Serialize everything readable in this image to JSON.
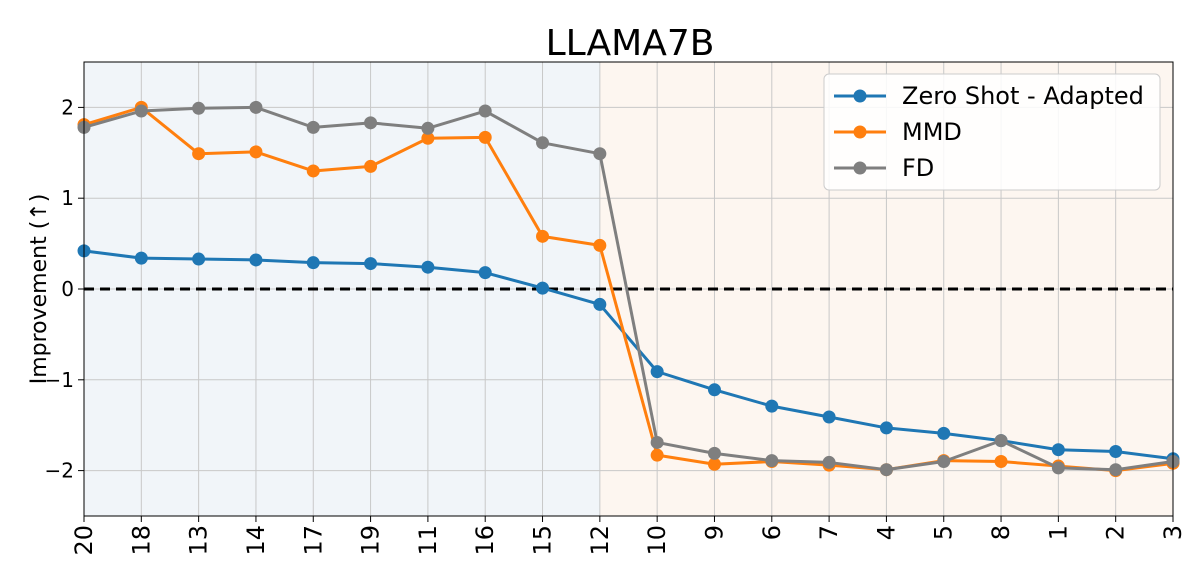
{
  "chart_data": {
    "type": "line",
    "title": "LLAMA7B",
    "xlabel": "",
    "ylabel": "Improvement (↑)",
    "categories": [
      "20",
      "18",
      "13",
      "14",
      "17",
      "19",
      "11",
      "16",
      "15",
      "12",
      "10",
      "9",
      "6",
      "7",
      "4",
      "5",
      "8",
      "1",
      "2",
      "3"
    ],
    "ylim": [
      -2.5,
      2.5
    ],
    "yticks": [
      -2,
      -1,
      0,
      1,
      2
    ],
    "ytick_labels": [
      "−2",
      "−1",
      "0",
      "1",
      "2"
    ],
    "grid": true,
    "legend_position": "top-right",
    "reference_line": {
      "y": 0,
      "style": "dashed",
      "color": "#000000"
    },
    "shaded_regions": [
      {
        "from_category": "20",
        "to_category": "12",
        "color": "#f1f5f9"
      },
      {
        "from_category": "12",
        "to_category": "3",
        "color": "#fdf6f0"
      }
    ],
    "series": [
      {
        "name": "Zero Shot - Adapted",
        "color": "#1f77b4",
        "values": [
          0.42,
          0.34,
          0.33,
          0.32,
          0.29,
          0.28,
          0.24,
          0.18,
          0.01,
          -0.17,
          -0.91,
          -1.11,
          -1.29,
          -1.41,
          -1.53,
          -1.59,
          -1.67,
          -1.77,
          -1.79,
          -1.87
        ]
      },
      {
        "name": "MMD",
        "color": "#ff7f0e",
        "values": [
          1.81,
          2.0,
          1.49,
          1.51,
          1.3,
          1.35,
          1.66,
          1.67,
          0.58,
          0.48,
          -1.83,
          -1.93,
          -1.9,
          -1.94,
          -1.99,
          -1.89,
          -1.9,
          -1.95,
          -2.0,
          -1.92
        ]
      },
      {
        "name": "FD",
        "color": "#7f7f7f",
        "values": [
          1.78,
          1.96,
          1.99,
          2.0,
          1.78,
          1.83,
          1.77,
          1.96,
          1.61,
          1.49,
          -1.69,
          -1.81,
          -1.89,
          -1.91,
          -1.99,
          -1.9,
          -1.67,
          -1.97,
          -1.99,
          -1.9
        ]
      }
    ]
  }
}
